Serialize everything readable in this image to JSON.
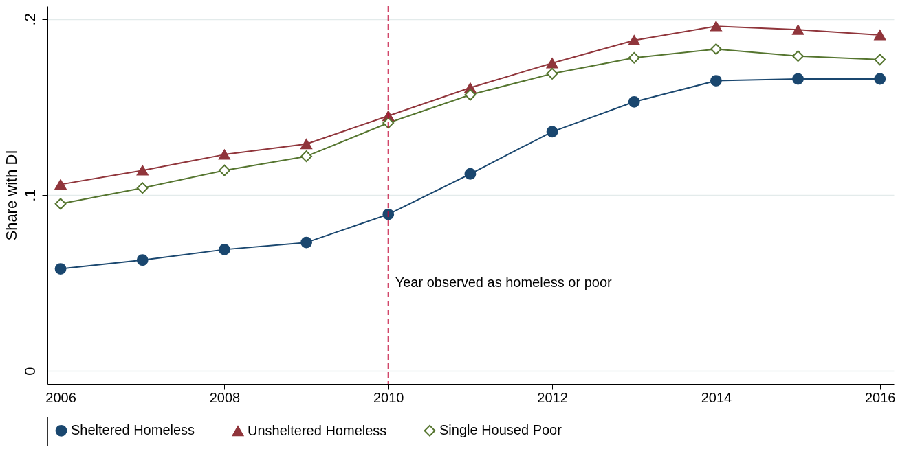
{
  "chart_data": {
    "type": "line",
    "ylabel": "Share with DI",
    "x": [
      2006,
      2007,
      2008,
      2009,
      2010,
      2011,
      2012,
      2013,
      2014,
      2015,
      2016
    ],
    "series": [
      {
        "name": "Sheltered Homeless",
        "color": "#1a476f",
        "marker": "circle",
        "values": [
          0.058,
          0.063,
          0.069,
          0.073,
          0.089,
          0.112,
          0.136,
          0.153,
          0.165,
          0.166,
          0.166
        ]
      },
      {
        "name": "Unsheltered Homeless",
        "color": "#90353b",
        "marker": "triangle",
        "values": [
          0.106,
          0.114,
          0.123,
          0.129,
          0.145,
          0.161,
          0.175,
          0.188,
          0.196,
          0.194,
          0.191
        ]
      },
      {
        "name": "Single Housed Poor",
        "color": "#55752f",
        "marker": "diamond",
        "values": [
          0.095,
          0.104,
          0.114,
          0.122,
          0.141,
          0.157,
          0.169,
          0.178,
          0.183,
          0.179,
          0.177
        ]
      }
    ],
    "xlim": [
      2005.84,
      2016.17
    ],
    "xticks": [
      2006,
      2008,
      2010,
      2012,
      2014,
      2016
    ],
    "ylim": [
      -0.0074,
      0.2074
    ],
    "yticks": [
      {
        "value": 0,
        "label": "0"
      },
      {
        "value": 0.1,
        "label": ".1"
      },
      {
        "value": 0.2,
        "label": ".2"
      }
    ],
    "grid": "y",
    "legend": "bottom",
    "ref_lines": [
      {
        "axis": "x",
        "value": 2010,
        "color": "#c10534",
        "line_style": "dashed"
      }
    ],
    "annotations": [
      {
        "text": "Year observed as homeless or poor",
        "x": 2010,
        "y": 0.05
      }
    ]
  }
}
